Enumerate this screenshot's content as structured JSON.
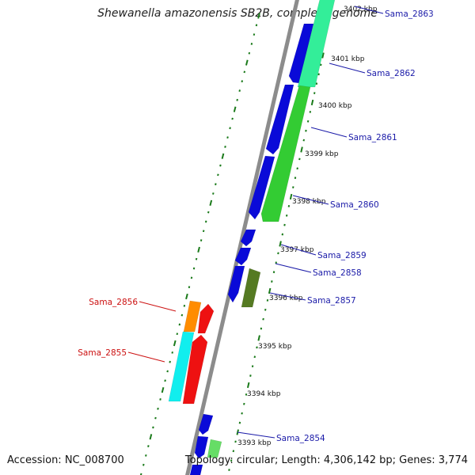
{
  "title": "Shewanella amazonensis SB2B, complete genome",
  "footer": {
    "accession": "Accession: NC_008700",
    "summary": "Topology: circular; Length: 4,306,142 bp; Genes: 3,774"
  },
  "colors": {
    "backbone": "#8c8c8c",
    "forward_tick": "#1a7a1a",
    "reverse_tick": "#1a7a1a",
    "label_forward": "#1a1aa8",
    "label_reverse": "#cc1111",
    "blue_gene": "#0a0ad8",
    "green_gene": "#33cc33",
    "teal_gene": "#33ee99",
    "olive_gene": "#557a22",
    "orange_gene": "#ff8c00",
    "cyan_gene": "#11eeee",
    "red_gene": "#ee1111",
    "light_green_gene": "#66dd66"
  },
  "kbp_ticks": [
    "3393 kbp",
    "3394 kbp",
    "3395 kbp",
    "3396 kbp",
    "3397 kbp",
    "3398 kbp",
    "3399 kbp",
    "3400 kbp",
    "3401 kbp",
    "3402 kbp"
  ],
  "gene_labels": [
    {
      "name": "Sama_2863",
      "strand": "forward"
    },
    {
      "name": "Sama_2862",
      "strand": "forward"
    },
    {
      "name": "Sama_2861",
      "strand": "forward"
    },
    {
      "name": "Sama_2860",
      "strand": "forward"
    },
    {
      "name": "Sama_2859",
      "strand": "forward"
    },
    {
      "name": "Sama_2858",
      "strand": "forward"
    },
    {
      "name": "Sama_2857",
      "strand": "forward"
    },
    {
      "name": "Sama_2856",
      "strand": "reverse"
    },
    {
      "name": "Sama_2855",
      "strand": "reverse"
    },
    {
      "name": "Sama_2854",
      "strand": "forward"
    }
  ]
}
